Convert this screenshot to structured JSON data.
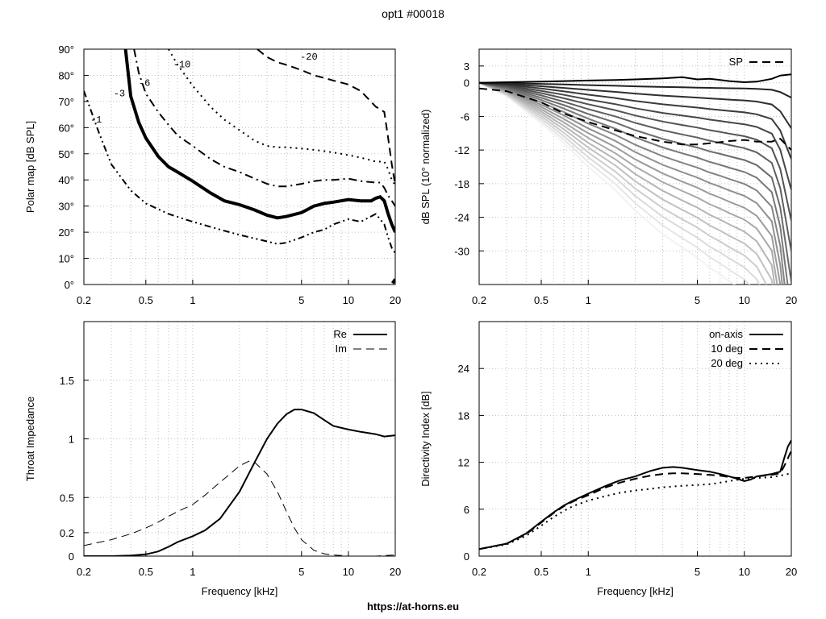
{
  "title": "opt1 #00018",
  "footer": "https://at-horns.eu",
  "chart_data": [
    {
      "type": "line",
      "id": "polar",
      "ylabel": "Polar map [dB SPL]",
      "xlabel": "",
      "xscale": "log",
      "xlim": [
        0.2,
        20
      ],
      "ylim": [
        0,
        90
      ],
      "xticks": [
        0.2,
        0.5,
        1,
        5,
        10,
        20
      ],
      "xtick_labels": [
        "0.2",
        "0.5",
        "1",
        "5",
        "10",
        "20"
      ],
      "yticks": [
        0,
        10,
        20,
        30,
        40,
        50,
        60,
        70,
        80,
        90
      ],
      "ytick_labels": [
        "0°",
        "10°",
        "20°",
        "30°",
        "40°",
        "50°",
        "60°",
        "70°",
        "80°",
        "90°"
      ],
      "grid": true,
      "series": [
        {
          "name": "-1",
          "style": "dash-dot-dot",
          "width": 2,
          "label_at": [
            0.22,
            62
          ],
          "x": [
            0.2,
            0.25,
            0.3,
            0.4,
            0.5,
            0.7,
            1,
            1.5,
            2,
            3,
            3.5,
            4,
            5,
            6,
            7,
            8,
            10,
            12,
            15,
            17,
            18,
            19,
            20
          ],
          "y": [
            74,
            58,
            46,
            36,
            31,
            27,
            24,
            21,
            19,
            16.5,
            15.5,
            16,
            18,
            20,
            21,
            23,
            25,
            24,
            27,
            23,
            18,
            14,
            12
          ]
        },
        {
          "name": "-3",
          "style": "solid",
          "width": 4,
          "label_at": [
            0.31,
            72
          ],
          "x": [
            0.37,
            0.4,
            0.45,
            0.5,
            0.6,
            0.7,
            0.8,
            1,
            1.3,
            1.6,
            2,
            2.5,
            3,
            3.5,
            4,
            5,
            6,
            7,
            8,
            10,
            12,
            14,
            15,
            16,
            17,
            18,
            19,
            20
          ],
          "y": [
            90,
            72,
            62,
            56,
            49,
            45,
            43,
            39.5,
            35,
            32,
            30.5,
            28.5,
            26.5,
            25.5,
            26,
            27.5,
            30,
            31,
            31.5,
            32.5,
            32,
            32,
            33,
            33.5,
            32,
            27,
            23,
            20
          ]
        },
        {
          "name": "-6",
          "style": "dash-dot",
          "width": 2,
          "label_at": [
            0.45,
            76
          ],
          "x": [
            0.42,
            0.45,
            0.5,
            0.6,
            0.7,
            0.8,
            1,
            1.3,
            1.6,
            2,
            2.5,
            3,
            3.5,
            4,
            5,
            6,
            7,
            8,
            10,
            12,
            15,
            16,
            17,
            18,
            19,
            20
          ],
          "y": [
            90,
            81,
            73,
            66,
            61,
            57,
            53,
            48,
            45,
            43,
            40.5,
            38.5,
            37.5,
            37.5,
            38.5,
            39.5,
            40,
            40,
            40.5,
            39.5,
            39,
            39,
            37,
            34,
            32,
            30
          ]
        },
        {
          "name": "-10",
          "style": "dotted",
          "width": 2,
          "label_at": [
            0.75,
            83
          ],
          "x": [
            0.7,
            0.8,
            1,
            1.3,
            1.6,
            2,
            2.5,
            3,
            3.5,
            4,
            5,
            6,
            7,
            8,
            10,
            12,
            15,
            17,
            18,
            19,
            20
          ],
          "y": [
            90,
            84,
            76,
            68,
            63,
            59,
            55,
            53,
            52.5,
            52.5,
            52,
            51.5,
            51,
            50.5,
            49.5,
            48.5,
            47,
            47,
            44,
            40,
            38
          ]
        },
        {
          "name": "-20",
          "style": "dash",
          "width": 2,
          "label_at": [
            4.9,
            86
          ],
          "x": [
            2.6,
            3,
            3.5,
            4,
            5,
            6,
            7,
            8,
            10,
            12,
            15,
            16,
            17,
            18,
            19,
            20
          ],
          "y": [
            90,
            87,
            85,
            84,
            82,
            80,
            79,
            78,
            76.5,
            74,
            68,
            67,
            66,
            56,
            46,
            38
          ]
        },
        {
          "name": "",
          "style": "solid",
          "width": 4,
          "label_at": null,
          "x": [
            19.2,
            19.6,
            20
          ],
          "y": [
            0.5,
            1.2,
            2
          ]
        }
      ]
    },
    {
      "type": "line",
      "id": "spl",
      "ylabel": "dB SPL (10° normalized)",
      "xlabel": "",
      "xscale": "log",
      "xlim": [
        0.2,
        20
      ],
      "ylim": [
        -36,
        6
      ],
      "xticks": [
        0.2,
        0.5,
        1,
        5,
        10,
        20
      ],
      "xtick_labels": [
        "0.2",
        "0.5",
        "1",
        "5",
        "10",
        "20"
      ],
      "yticks": [
        3,
        0,
        -6,
        -12,
        -18,
        -24,
        -30
      ],
      "ytick_labels": [
        "3",
        "0",
        "-6",
        "-12",
        "-18",
        "-24",
        "-30"
      ],
      "grid": true,
      "legend": {
        "position": "top-right",
        "entries": [
          "SP"
        ]
      },
      "x": [
        0.2,
        0.3,
        0.5,
        0.7,
        1,
        1.5,
        2,
        3,
        4,
        5,
        6,
        7,
        8,
        10,
        12,
        15,
        17,
        20
      ],
      "fan": {
        "count": 18,
        "shape": [
          0,
          -0.2,
          -0.6,
          -0.9,
          -1.25,
          -1.6,
          -1.9,
          -2.25,
          -2.45,
          -2.6,
          -2.75,
          -2.85,
          -2.95,
          -3.1,
          -3.3,
          -3.8,
          -5,
          -8
        ],
        "first_scale": 0.15,
        "scale_step": 1.3,
        "dark_color": "#000000",
        "light_color": "#f2f2f2"
      },
      "series": [
        {
          "name": "on-axis",
          "style": "solid",
          "color": "#000000",
          "y": [
            0,
            0.1,
            0.2,
            0.3,
            0.4,
            0.5,
            0.6,
            0.8,
            1,
            0.6,
            0.7,
            0.5,
            0.3,
            0.1,
            0.2,
            0.7,
            1.3,
            1.5
          ]
        },
        {
          "name": "SP",
          "style": "dash",
          "color": "#000000",
          "y": [
            -1,
            -1.5,
            -3.5,
            -5.5,
            -7,
            -8.5,
            -9.5,
            -10.5,
            -11,
            -11,
            -10.8,
            -10.6,
            -10.4,
            -10.2,
            -10.5,
            -10.5,
            -10,
            -12
          ]
        }
      ]
    },
    {
      "type": "line",
      "id": "impedance",
      "ylabel": "Throat Impedance",
      "xlabel": "Frequency [kHz]",
      "xscale": "log",
      "xlim": [
        0.2,
        20
      ],
      "ylim": [
        0,
        2
      ],
      "xticks": [
        0.2,
        0.5,
        1,
        5,
        10,
        20
      ],
      "xtick_labels": [
        "0.2",
        "0.5",
        "1",
        "5",
        "10",
        "20"
      ],
      "yticks": [
        0,
        0.2,
        0.5,
        1,
        1.5
      ],
      "ytick_labels": [
        "0",
        "0.2",
        "0.5",
        "1",
        "1.5"
      ],
      "grid": true,
      "legend": {
        "position": "top-right",
        "entries": [
          "Re",
          "Im"
        ]
      },
      "series": [
        {
          "name": "Re",
          "style": "solid",
          "width": 2,
          "x": [
            0.2,
            0.3,
            0.4,
            0.5,
            0.6,
            0.7,
            0.8,
            1,
            1.2,
            1.5,
            2,
            2.5,
            3,
            3.5,
            4,
            4.5,
            5,
            6,
            7,
            8,
            10,
            12,
            15,
            17,
            20
          ],
          "y": [
            0,
            0,
            0.005,
            0.015,
            0.04,
            0.08,
            0.12,
            0.17,
            0.22,
            0.32,
            0.55,
            0.8,
            1.0,
            1.13,
            1.21,
            1.25,
            1.25,
            1.22,
            1.16,
            1.11,
            1.08,
            1.06,
            1.04,
            1.02,
            1.03
          ]
        },
        {
          "name": "Im",
          "style": "dash",
          "width": 1,
          "x": [
            0.2,
            0.3,
            0.4,
            0.5,
            0.6,
            0.7,
            0.8,
            1,
            1.2,
            1.5,
            2,
            2.3,
            2.5,
            3,
            3.5,
            4,
            4.5,
            5,
            6,
            7,
            8,
            10,
            12,
            15,
            20
          ],
          "y": [
            0.09,
            0.14,
            0.19,
            0.24,
            0.29,
            0.34,
            0.38,
            0.44,
            0.52,
            0.63,
            0.77,
            0.81,
            0.8,
            0.7,
            0.55,
            0.38,
            0.24,
            0.14,
            0.05,
            0.02,
            0.01,
            0,
            0,
            0,
            0.01
          ]
        }
      ]
    },
    {
      "type": "line",
      "id": "directivity",
      "ylabel": "Directivity Index [dB]",
      "xlabel": "Frequency [kHz]",
      "xscale": "log",
      "xlim": [
        0.2,
        20
      ],
      "ylim": [
        0,
        30
      ],
      "xticks": [
        0.2,
        0.5,
        1,
        5,
        10,
        20
      ],
      "xtick_labels": [
        "0.2",
        "0.5",
        "1",
        "5",
        "10",
        "20"
      ],
      "yticks": [
        0,
        6,
        12,
        18,
        24
      ],
      "ytick_labels": [
        "0",
        "6",
        "12",
        "18",
        "24"
      ],
      "grid": true,
      "legend": {
        "position": "top-right",
        "entries": [
          "on-axis",
          "10 deg",
          "20 deg"
        ]
      },
      "series": [
        {
          "name": "on-axis",
          "style": "solid",
          "width": 2,
          "x": [
            0.2,
            0.3,
            0.4,
            0.5,
            0.6,
            0.7,
            0.8,
            1,
            1.3,
            1.6,
            2,
            2.5,
            3,
            3.5,
            4,
            5,
            6,
            7,
            8,
            9,
            10,
            11,
            12,
            15,
            17,
            18,
            19,
            20
          ],
          "y": [
            0.9,
            1.6,
            2.9,
            4.4,
            5.6,
            6.5,
            7.1,
            8.0,
            9.0,
            9.7,
            10.2,
            10.9,
            11.3,
            11.4,
            11.3,
            11.0,
            10.8,
            10.5,
            10.2,
            9.9,
            9.6,
            9.8,
            10.2,
            10.5,
            10.8,
            12.5,
            14.0,
            14.8
          ]
        },
        {
          "name": "10 deg",
          "style": "dash",
          "width": 2,
          "x": [
            0.2,
            0.3,
            0.4,
            0.5,
            0.6,
            0.7,
            0.8,
            1,
            1.3,
            1.6,
            2,
            2.5,
            3,
            3.5,
            4,
            5,
            6,
            7,
            8,
            9,
            10,
            12,
            15,
            17,
            18,
            19,
            20
          ],
          "y": [
            0.9,
            1.6,
            2.8,
            4.3,
            5.5,
            6.4,
            7.0,
            7.8,
            8.8,
            9.4,
            9.9,
            10.3,
            10.5,
            10.6,
            10.6,
            10.5,
            10.4,
            10.3,
            10.1,
            10.0,
            10.0,
            10.2,
            10.4,
            10.6,
            11.5,
            12.5,
            13.5
          ]
        },
        {
          "name": "20 deg",
          "style": "dotted",
          "width": 2,
          "x": [
            0.2,
            0.3,
            0.4,
            0.5,
            0.6,
            0.7,
            0.8,
            1,
            1.3,
            1.6,
            2,
            2.5,
            3,
            4,
            5,
            6,
            7,
            8,
            10,
            12,
            15,
            17,
            20
          ],
          "y": [
            0.9,
            1.5,
            2.6,
            3.9,
            5.0,
            5.8,
            6.4,
            7.1,
            7.7,
            8.1,
            8.4,
            8.6,
            8.8,
            9.0,
            9.1,
            9.2,
            9.4,
            9.6,
            9.9,
            10.0,
            10.1,
            10.3,
            10.6
          ]
        }
      ]
    }
  ]
}
